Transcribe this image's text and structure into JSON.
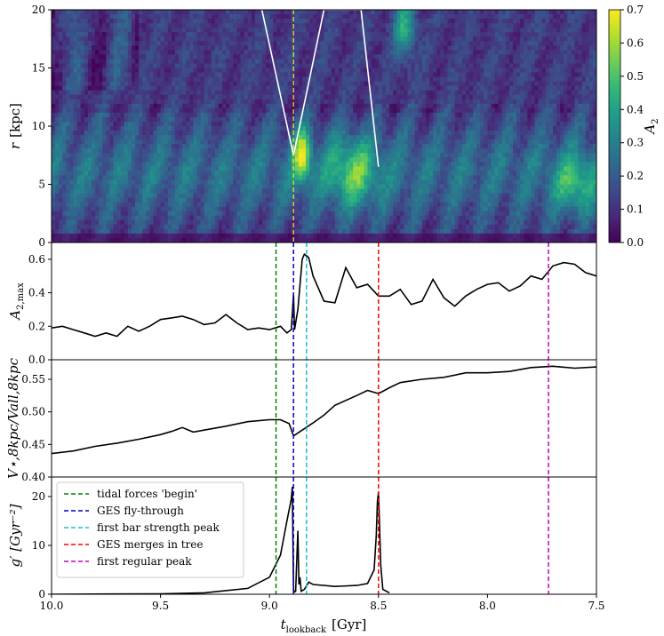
{
  "chart_data": [
    {
      "type": "heatmap",
      "panel": "top",
      "ylabel_base": "r",
      "ylabel_unit": "[kpc]",
      "ylim": [
        0,
        20
      ],
      "yticks": [
        "0",
        "5",
        "10",
        "15",
        "20"
      ],
      "colorbar": {
        "label_base": "A",
        "label_sub": "2",
        "range": [
          0.0,
          0.7
        ],
        "ticks": [
          "0.0",
          "0.1",
          "0.2",
          "0.3",
          "0.4",
          "0.5",
          "0.6",
          "0.7"
        ]
      },
      "white_contours": [
        {
          "x": [
            9.035,
            8.89,
            8.75,
            8.7,
            8.65,
            8.58,
            8.5
          ],
          "y": [
            20,
            7.5,
            20,
            20,
            20,
            20,
            6.5
          ]
        }
      ]
    },
    {
      "type": "line",
      "panel": "A2max",
      "ylabel_base": "A",
      "ylabel_sub": "2,max",
      "ylim": [
        0.0,
        0.7
      ],
      "yticks": [
        "0.0",
        "0.2",
        "0.4",
        "0.6"
      ],
      "x": [
        10.0,
        9.95,
        9.9,
        9.85,
        9.8,
        9.75,
        9.7,
        9.65,
        9.6,
        9.55,
        9.5,
        9.45,
        9.4,
        9.35,
        9.3,
        9.25,
        9.2,
        9.15,
        9.1,
        9.05,
        9.0,
        8.95,
        8.92,
        8.9,
        8.89,
        8.885,
        8.87,
        8.85,
        8.84,
        8.82,
        8.8,
        8.75,
        8.7,
        8.65,
        8.6,
        8.55,
        8.5,
        8.45,
        8.4,
        8.35,
        8.3,
        8.25,
        8.2,
        8.15,
        8.1,
        8.05,
        8.0,
        7.95,
        7.9,
        7.85,
        7.8,
        7.75,
        7.7,
        7.65,
        7.6,
        7.55,
        7.5
      ],
      "y": [
        0.19,
        0.2,
        0.18,
        0.16,
        0.14,
        0.16,
        0.14,
        0.2,
        0.17,
        0.2,
        0.24,
        0.25,
        0.26,
        0.24,
        0.21,
        0.22,
        0.27,
        0.22,
        0.18,
        0.19,
        0.18,
        0.2,
        0.16,
        0.18,
        0.39,
        0.18,
        0.3,
        0.6,
        0.63,
        0.61,
        0.5,
        0.35,
        0.34,
        0.55,
        0.43,
        0.45,
        0.38,
        0.38,
        0.42,
        0.33,
        0.35,
        0.48,
        0.37,
        0.32,
        0.38,
        0.42,
        0.45,
        0.46,
        0.41,
        0.44,
        0.5,
        0.48,
        0.56,
        0.58,
        0.57,
        0.52,
        0.5
      ]
    },
    {
      "type": "line",
      "panel": "Vratio",
      "ylabel": "V⋆,8kpc/Vall,8kpc",
      "ylim": [
        0.4,
        0.58
      ],
      "yticks": [
        "0.40",
        "0.45",
        "0.50",
        "0.55"
      ],
      "x": [
        10.0,
        9.9,
        9.8,
        9.7,
        9.6,
        9.5,
        9.45,
        9.4,
        9.35,
        9.3,
        9.2,
        9.1,
        9.0,
        8.95,
        8.91,
        8.89,
        8.85,
        8.8,
        8.75,
        8.7,
        8.6,
        8.55,
        8.5,
        8.45,
        8.4,
        8.3,
        8.2,
        8.1,
        8.0,
        7.9,
        7.8,
        7.7,
        7.6,
        7.5
      ],
      "y": [
        0.436,
        0.44,
        0.447,
        0.452,
        0.458,
        0.465,
        0.47,
        0.476,
        0.469,
        0.472,
        0.478,
        0.485,
        0.488,
        0.488,
        0.482,
        0.463,
        0.472,
        0.483,
        0.495,
        0.51,
        0.525,
        0.533,
        0.528,
        0.537,
        0.545,
        0.55,
        0.553,
        0.56,
        0.56,
        0.562,
        0.568,
        0.57,
        0.567,
        0.569
      ]
    },
    {
      "type": "line",
      "panel": "gprime",
      "ylabel": "g′ [Gyr⁻²]",
      "ylim": [
        0,
        24
      ],
      "yticks": [
        "0",
        "10",
        "20"
      ],
      "xlabel": "t_lookback [Gyr]",
      "xlim": [
        10.0,
        7.5
      ],
      "xticks": [
        "10.0",
        "9.5",
        "9.0",
        "8.5",
        "8.0",
        "7.5"
      ],
      "x": [
        10.0,
        9.5,
        9.3,
        9.1,
        9.0,
        8.95,
        8.92,
        8.9,
        8.895,
        8.89,
        8.885,
        8.88,
        8.87,
        8.865,
        8.86,
        8.855,
        8.84,
        8.82,
        8.8,
        8.7,
        8.6,
        8.55,
        8.52,
        8.51,
        8.505,
        8.5,
        8.495,
        8.49,
        8.48,
        8.45
      ],
      "y": [
        0.0,
        0.1,
        0.3,
        1.2,
        3.5,
        8.0,
        15.0,
        19.5,
        22.0,
        0.8,
        0.5,
        0.6,
        13.0,
        2.0,
        3.5,
        0.6,
        1.0,
        2.5,
        2.0,
        1.6,
        1.8,
        2.2,
        5.0,
        12.0,
        19.0,
        21.0,
        14.0,
        6.0,
        1.0,
        0.3
      ]
    }
  ],
  "events": [
    {
      "label": "tidal forces 'begin'",
      "x": 8.97,
      "color": "#008000"
    },
    {
      "label": "GES fly-through",
      "x": 8.89,
      "color": "#0000cc"
    },
    {
      "label": "first bar strength peak",
      "x": 8.83,
      "color": "#17becf"
    },
    {
      "label": "GES merges in tree",
      "x": 8.5,
      "color": "#ff0000"
    },
    {
      "label": "first regular peak",
      "x": 7.72,
      "color": "#bf00bf"
    }
  ],
  "xlabel": {
    "base": "t",
    "sub": "lookback",
    "unit": "[Gyr]"
  },
  "colors": {
    "line": "#000000",
    "contour": "#ffffff",
    "viridis": [
      "#440154",
      "#482878",
      "#3e4a89",
      "#31688e",
      "#26828e",
      "#1f9e89",
      "#35b779",
      "#6ece58",
      "#b5de2b",
      "#fde725"
    ]
  }
}
